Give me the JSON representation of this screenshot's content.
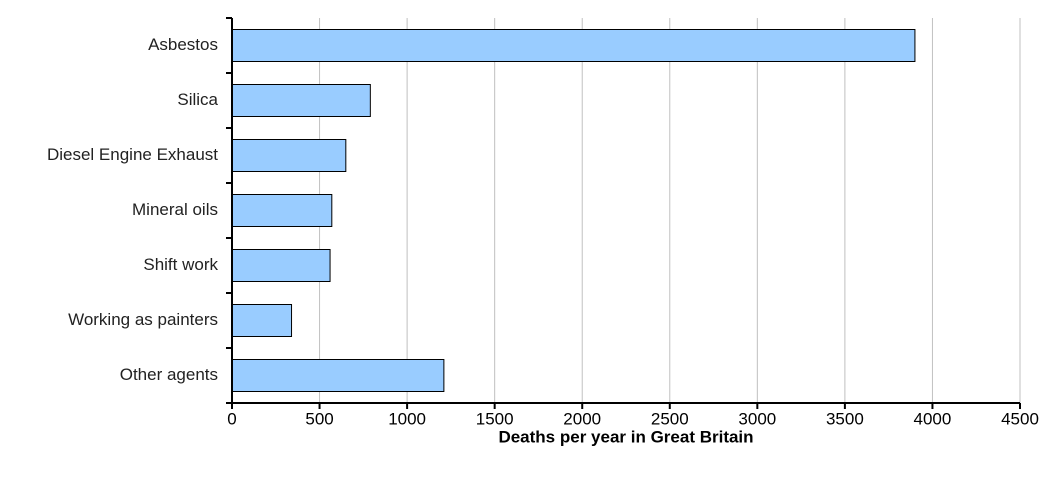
{
  "chart_data": {
    "type": "bar",
    "orientation": "horizontal",
    "x_label": "Deaths per year in Great Britain",
    "categories": [
      "Asbestos",
      "Silica",
      "Diesel Engine Exhaust",
      "Mineral oils",
      "Shift work",
      "Working as painters",
      "Other agents"
    ],
    "values": [
      3900,
      790,
      650,
      570,
      560,
      340,
      1210
    ],
    "color": "#99ccff",
    "xlim": [
      0,
      4500
    ],
    "xticks": [
      0,
      500,
      1000,
      1500,
      2000,
      2500,
      3000,
      3500,
      4000,
      4500
    ],
    "grid": true
  }
}
